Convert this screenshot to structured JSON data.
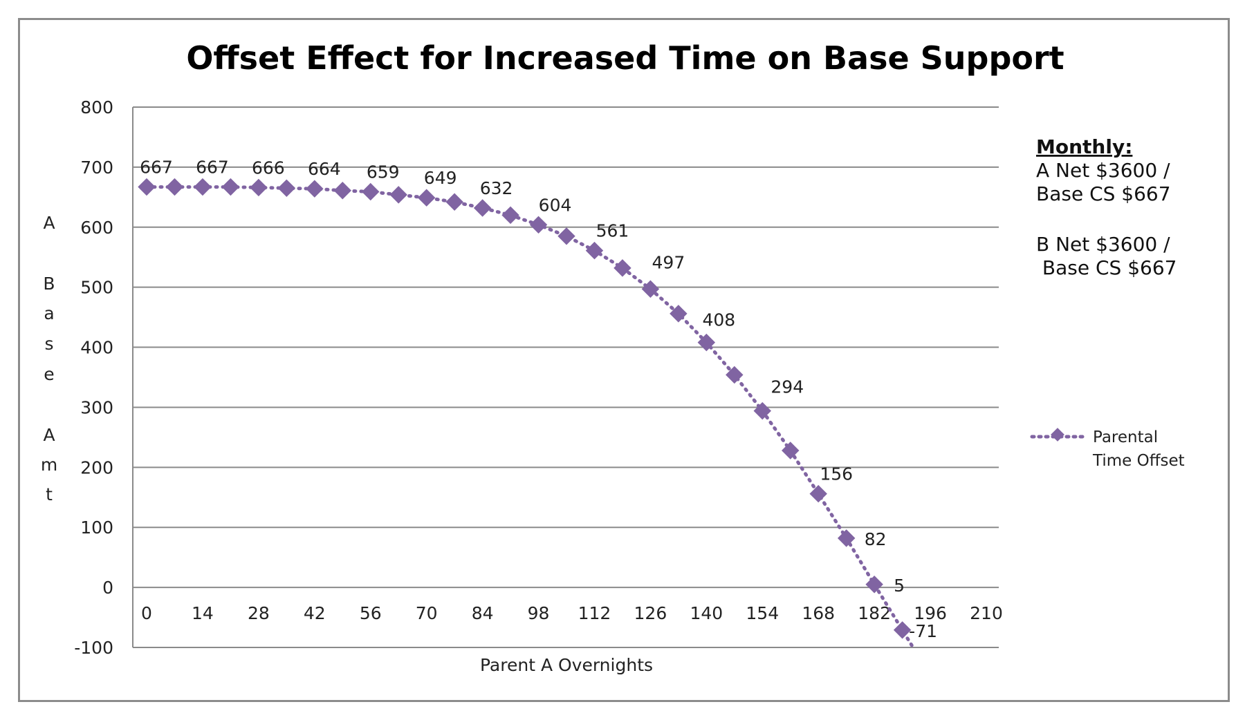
{
  "chart_data": {
    "type": "line",
    "title": "Offset Effect for Increased Time on Base Support",
    "xlabel": "Parent A Overnights",
    "ylabel": "A Base Amt",
    "ylabel_chars": [
      "A",
      "B",
      "a",
      "s",
      "e",
      "A",
      "m",
      "t"
    ],
    "xlim": [
      0,
      210
    ],
    "ylim": [
      -100,
      800
    ],
    "x_ticks": [
      0,
      14,
      28,
      42,
      56,
      70,
      84,
      98,
      112,
      126,
      140,
      154,
      168,
      182,
      196,
      210
    ],
    "y_ticks": [
      800,
      700,
      600,
      500,
      400,
      300,
      200,
      100,
      0,
      -100
    ],
    "grid": true,
    "legend_position": "right",
    "series": [
      {
        "name": "Parental Time Offset",
        "color": "#8064a2",
        "x": [
          0,
          7,
          14,
          21,
          28,
          35,
          42,
          49,
          56,
          63,
          70,
          77,
          84,
          91,
          98,
          105,
          112,
          119,
          126,
          133,
          140,
          147,
          154,
          161,
          168,
          175,
          182,
          189
        ],
        "y": [
          667,
          667,
          667,
          667,
          666,
          665,
          664,
          661,
          659,
          654,
          649,
          642,
          632,
          620,
          604,
          585,
          561,
          532,
          497,
          456,
          408,
          354,
          294,
          228,
          156,
          82,
          5,
          -71
        ],
        "labels": [
          "667",
          "",
          "667",
          "",
          "666",
          "",
          "664",
          "",
          "659",
          "",
          "649",
          "",
          "632",
          "",
          "604",
          "",
          "561",
          "",
          "497",
          "",
          "408",
          "",
          "294",
          "",
          "156",
          "82",
          "5",
          "-71"
        ]
      }
    ]
  },
  "notes": {
    "heading": "Monthly:",
    "lines": [
      "A Net $3600 /",
      "Base CS $667",
      "B Net  $3600 /",
      " Base CS $667"
    ]
  },
  "legend": {
    "line1": "Parental",
    "line2": "Time Offset"
  }
}
